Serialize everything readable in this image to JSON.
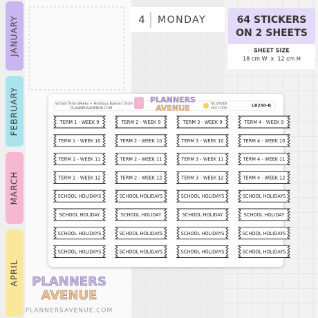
{
  "tabs": [
    "JANUARY",
    "FEBRUARY",
    "MARCH",
    "APRIL"
  ],
  "planner": {
    "day_number": "4",
    "day_name": "MONDAY"
  },
  "badge": {
    "line1": "64 STICKERS",
    "line2": "ON 2 SHEETS"
  },
  "sheet_size": {
    "label": "SHEET SIZE",
    "value": "18 cm W  x  12 cm H"
  },
  "sheet": {
    "product_name": "School Term Weeks + Holidays Banner 10cm",
    "website": "PLANNERSAVENUE.COM",
    "logo_top": "PLANNERS",
    "logo_bottom": "AVENUE",
    "reorder": "RE-ORDER",
    "sku_label": "SKU CODE:",
    "sku": "LB250-B"
  },
  "stickers": {
    "rows": [
      [
        "TERM 1 - WEEK 9",
        "TERM 2 - WEEK 9",
        "TERM 3 - WEEK 9",
        "TERM 4 - WEEK 9"
      ],
      [
        "TERM 1 - WEEK 10",
        "TERM 2 - WEEK 10",
        "TERM 3 - WEEK 10",
        "TERM 4 - WEEK 10"
      ],
      [
        "TERM 1 - WEEK 11",
        "TERM 2 - WEEK 11",
        "TERM 3 - WEEK 11",
        "TERM 4 - WEEK 11"
      ],
      [
        "TERM 1 - WEEK 12",
        "TERM 2 - WEEK 12",
        "TERM 3 - WEEK 12",
        "TERM 4 - WEEK 12"
      ],
      [
        "SCHOOL HOLIDAYS",
        "SCHOOL HOLIDAYS",
        "SCHOOL HOLIDAYS",
        "SCHOOL HOLIDAYS"
      ],
      [
        "SCHOOL HOLIDAY",
        "SCHOOL HOLIDAY",
        "SCHOOL HOLIDAY",
        "SCHOOL HOLIDAY"
      ],
      [
        "SCHOOL HOLIDAYS",
        "SCHOOL HOLIDAYS",
        "SCHOOL HOLIDAYS",
        "SCHOOL HOLIDAYS"
      ],
      [
        "SCHOOL HOLIDAYS",
        "SCHOOL HOLIDAYS",
        "SCHOOL HOLIDAYS",
        "SCHOOL HOLIDAYS"
      ]
    ]
  },
  "footer": {
    "logo_top": "PLANNERS",
    "logo_bottom": "AVENUE",
    "website": "PLANNERSAVENUE.COM"
  }
}
